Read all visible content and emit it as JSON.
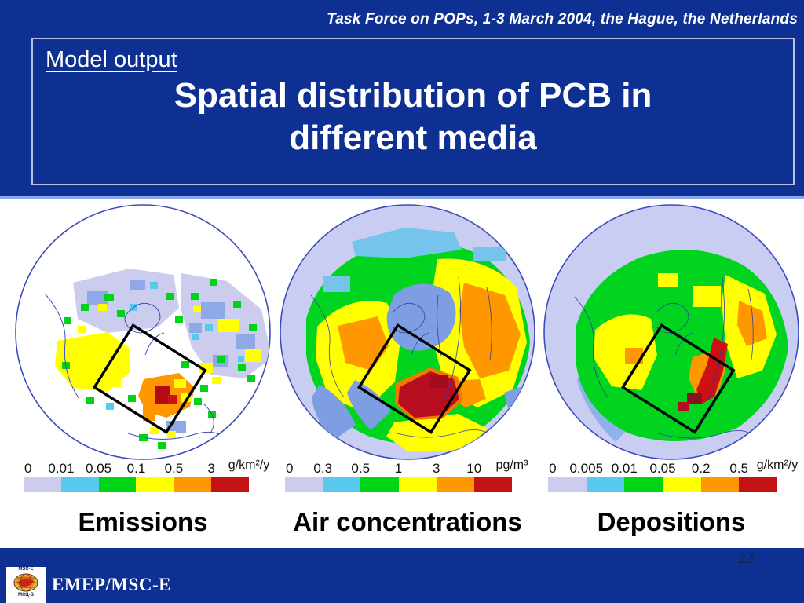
{
  "header": {
    "conference_title": "Task Force on POPs, 1-3 March 2004, the Hague, the Netherlands"
  },
  "title_block": {
    "subtitle": "Model output",
    "title_line1": "Spatial distribution of PCB in",
    "title_line2": "different media"
  },
  "maps": [
    {
      "label": "Emissions",
      "unit": "g/km²/y",
      "scale_ticks": [
        "0",
        "0.01",
        "0.05",
        "0.1",
        "0.5",
        "3"
      ]
    },
    {
      "label": "Air concentrations",
      "unit": "pg/m³",
      "scale_ticks": [
        "0",
        "0.3",
        "0.5",
        "1",
        "3",
        "10"
      ]
    },
    {
      "label": "Depositions",
      "unit": "g/km²/y",
      "scale_ticks": [
        "0",
        "0.005",
        "0.01",
        "0.05",
        "0.2",
        "0.5"
      ]
    }
  ],
  "legend_colors": [
    "#ccccee",
    "#58c8ee",
    "#00d416",
    "#ffff00",
    "#ff9800",
    "#c41111"
  ],
  "footer": {
    "page_number": "23",
    "org_name": "EMEP/MSC-E",
    "logo_text_top": "MSC-E",
    "logo_text_bottom": "МСЦ-В"
  },
  "colors": {
    "slide_blue": "#0d3092",
    "map_outline_blue": "#3c4cba",
    "separator_blue": "#8aa6e4"
  }
}
